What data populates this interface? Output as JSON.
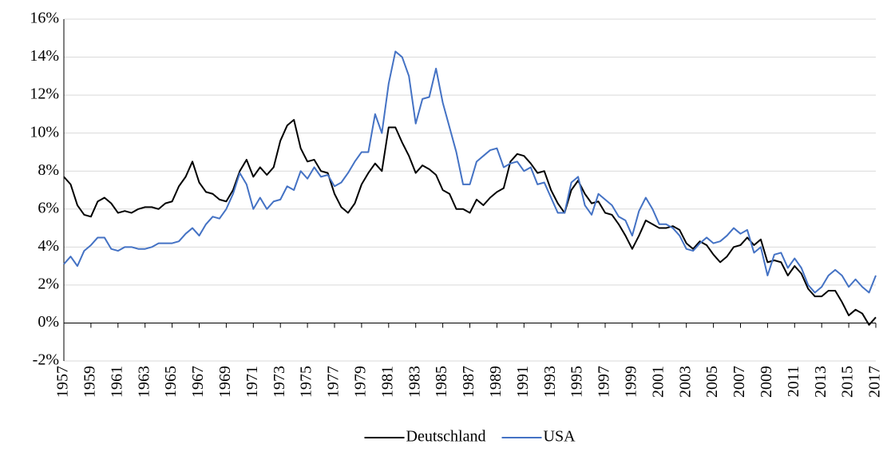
{
  "chart_data": {
    "type": "line",
    "x": [
      1957,
      1957.5,
      1958,
      1958.5,
      1959,
      1959.5,
      1960,
      1960.5,
      1961,
      1961.5,
      1962,
      1962.5,
      1963,
      1963.5,
      1964,
      1964.5,
      1965,
      1965.5,
      1966,
      1966.5,
      1967,
      1967.5,
      1968,
      1968.5,
      1969,
      1969.5,
      1970,
      1970.5,
      1971,
      1971.5,
      1972,
      1972.5,
      1973,
      1973.5,
      1974,
      1974.5,
      1975,
      1975.5,
      1976,
      1976.5,
      1977,
      1977.5,
      1978,
      1978.5,
      1979,
      1979.5,
      1980,
      1980.5,
      1981,
      1981.5,
      1982,
      1982.5,
      1983,
      1983.5,
      1984,
      1984.5,
      1985,
      1985.5,
      1986,
      1986.5,
      1987,
      1987.5,
      1988,
      1988.5,
      1989,
      1989.5,
      1990,
      1990.5,
      1991,
      1991.5,
      1992,
      1992.5,
      1993,
      1993.5,
      1994,
      1994.5,
      1995,
      1995.5,
      1996,
      1996.5,
      1997,
      1997.5,
      1998,
      1998.5,
      1999,
      1999.5,
      2000,
      2000.5,
      2001,
      2001.5,
      2002,
      2002.5,
      2003,
      2003.5,
      2004,
      2004.5,
      2005,
      2005.5,
      2006,
      2006.5,
      2007,
      2007.5,
      2008,
      2008.5,
      2009,
      2009.5,
      2010,
      2010.5,
      2011,
      2011.5,
      2012,
      2012.5,
      2013,
      2013.5,
      2014,
      2014.5,
      2015,
      2015.5,
      2016,
      2016.5,
      2017
    ],
    "series": [
      {
        "name": "Deutschland",
        "color": "#000000",
        "values": [
          7.7,
          7.3,
          6.2,
          5.7,
          5.6,
          6.4,
          6.6,
          6.3,
          5.8,
          5.9,
          5.8,
          6.0,
          6.1,
          6.1,
          6.0,
          6.3,
          6.4,
          7.2,
          7.7,
          8.5,
          7.4,
          6.9,
          6.8,
          6.5,
          6.4,
          7.0,
          8.0,
          8.6,
          7.7,
          8.2,
          7.8,
          8.2,
          9.6,
          10.4,
          10.7,
          9.2,
          8.5,
          8.6,
          8.0,
          7.9,
          6.8,
          6.1,
          5.8,
          6.3,
          7.3,
          7.9,
          8.4,
          8.0,
          10.3,
          10.3,
          9.5,
          8.8,
          7.9,
          8.3,
          8.1,
          7.8,
          7.0,
          6.8,
          6.0,
          6.0,
          5.8,
          6.5,
          6.2,
          6.6,
          6.9,
          7.1,
          8.5,
          8.9,
          8.8,
          8.4,
          7.9,
          8.0,
          7.0,
          6.3,
          5.8,
          7.0,
          7.5,
          6.8,
          6.3,
          6.4,
          5.8,
          5.7,
          5.2,
          4.6,
          3.9,
          4.6,
          5.4,
          5.2,
          5.0,
          5.0,
          5.1,
          4.9,
          4.2,
          3.9,
          4.3,
          4.1,
          3.6,
          3.2,
          3.5,
          4.0,
          4.1,
          4.5,
          4.1,
          4.4,
          3.2,
          3.3,
          3.2,
          2.5,
          3.0,
          2.6,
          1.8,
          1.4,
          1.4,
          1.7,
          1.7,
          1.1,
          0.4,
          0.7,
          0.5,
          -0.1,
          0.3
        ]
      },
      {
        "name": "USA",
        "color": "#4472c4",
        "values": [
          3.1,
          3.5,
          3.0,
          3.8,
          4.1,
          4.5,
          4.5,
          3.9,
          3.8,
          4.0,
          4.0,
          3.9,
          3.9,
          4.0,
          4.2,
          4.2,
          4.2,
          4.3,
          4.7,
          5.0,
          4.6,
          5.2,
          5.6,
          5.5,
          6.0,
          6.8,
          7.9,
          7.3,
          6.0,
          6.6,
          6.0,
          6.4,
          6.5,
          7.2,
          7.0,
          8.0,
          7.6,
          8.2,
          7.7,
          7.8,
          7.2,
          7.4,
          7.9,
          8.5,
          9.0,
          9.0,
          11.0,
          10.0,
          12.6,
          14.3,
          14.0,
          13.0,
          10.5,
          11.8,
          11.9,
          13.4,
          11.6,
          10.3,
          9.0,
          7.3,
          7.3,
          8.5,
          8.8,
          9.1,
          9.2,
          8.2,
          8.4,
          8.5,
          8.0,
          8.2,
          7.3,
          7.4,
          6.6,
          5.8,
          5.8,
          7.4,
          7.7,
          6.2,
          5.7,
          6.8,
          6.5,
          6.2,
          5.6,
          5.4,
          4.6,
          5.9,
          6.6,
          6.0,
          5.2,
          5.2,
          5.0,
          4.6,
          3.9,
          3.8,
          4.2,
          4.5,
          4.2,
          4.3,
          4.6,
          5.0,
          4.7,
          4.9,
          3.7,
          4.0,
          2.5,
          3.6,
          3.7,
          2.9,
          3.4,
          2.9,
          2.0,
          1.6,
          1.9,
          2.5,
          2.8,
          2.5,
          1.9,
          2.3,
          1.9,
          1.6,
          2.5
        ]
      }
    ],
    "xlim": [
      1957,
      2017
    ],
    "xticks": [
      1957,
      1959,
      1961,
      1963,
      1965,
      1967,
      1969,
      1971,
      1973,
      1975,
      1977,
      1979,
      1981,
      1983,
      1985,
      1987,
      1989,
      1991,
      1993,
      1995,
      1997,
      1999,
      2001,
      2003,
      2005,
      2007,
      2009,
      2011,
      2013,
      2015,
      2017
    ],
    "ylim": [
      -2,
      16
    ],
    "yticks": [
      {
        "value": -2,
        "label": "-2%"
      },
      {
        "value": 0,
        "label": "0%"
      },
      {
        "value": 2,
        "label": "2%"
      },
      {
        "value": 4,
        "label": "4%"
      },
      {
        "value": 6,
        "label": "6%"
      },
      {
        "value": 8,
        "label": "8%"
      },
      {
        "value": 10,
        "label": "10%"
      },
      {
        "value": 12,
        "label": "12%"
      },
      {
        "value": 14,
        "label": "14%"
      },
      {
        "value": 16,
        "label": "16%"
      }
    ],
    "grid": true,
    "legend": "bottom"
  }
}
